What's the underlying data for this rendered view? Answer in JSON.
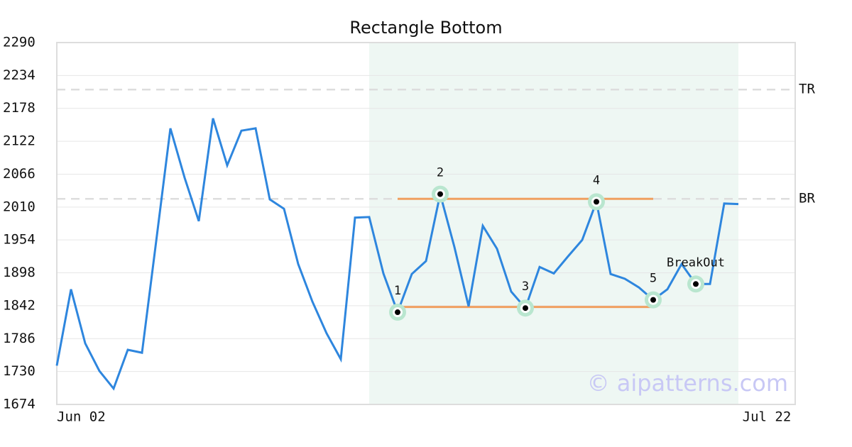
{
  "chart_data": {
    "type": "line",
    "title": "Rectangle Bottom",
    "x": [
      0,
      1,
      2,
      3,
      4,
      5,
      6,
      7,
      8,
      9,
      10,
      11,
      12,
      13,
      14,
      15,
      16,
      17,
      18,
      19,
      20,
      21,
      22,
      23,
      24,
      25,
      26,
      27,
      28,
      29,
      30,
      31,
      32,
      33,
      34,
      35,
      36,
      37,
      38,
      39,
      40,
      41,
      42,
      43,
      44,
      45,
      46,
      47,
      48
    ],
    "values": [
      1740,
      1870,
      1778,
      1731,
      1701,
      1767,
      1762,
      1952,
      2144,
      2060,
      1986,
      2161,
      2081,
      2140,
      2144,
      2023,
      2007,
      1913,
      1849,
      1795,
      1751,
      1992,
      1993,
      1897,
      1831,
      1896,
      1918,
      2032,
      1942,
      1841,
      1978,
      1939,
      1866,
      1838,
      1908,
      1897,
      1926,
      1954,
      2019,
      1896,
      1888,
      1873,
      1852,
      1870,
      1913,
      1879,
      1879,
      2016,
      2015
    ],
    "color": "#2e86de",
    "xlim": [
      0,
      52
    ],
    "xticks": [
      {
        "value": 0,
        "label": "Jun 02"
      },
      {
        "value": 50,
        "label": "Jul 22"
      }
    ],
    "ylim": [
      1674,
      2290
    ],
    "yticks": [
      1674,
      1730,
      1786,
      1842,
      1898,
      1954,
      2010,
      2066,
      2122,
      2178,
      2234,
      2290
    ],
    "grid": true,
    "region": {
      "x": [
        22,
        48
      ],
      "color": "#eef7f3"
    },
    "hlines": [
      {
        "label": "TR",
        "value": 2210
      },
      {
        "label": "BR",
        "value": 2024
      }
    ],
    "trend_lines": [
      {
        "x": [
          24,
          42
        ],
        "y": 2024,
        "color": "#f0a060"
      },
      {
        "x": [
          24,
          42
        ],
        "y": 1840,
        "color": "#f0a060"
      }
    ],
    "points": [
      {
        "label": "1",
        "x": 24,
        "y": 1831
      },
      {
        "label": "2",
        "x": 27,
        "y": 2032
      },
      {
        "label": "3",
        "x": 33,
        "y": 1838
      },
      {
        "label": "4",
        "x": 38,
        "y": 2019
      },
      {
        "label": "5",
        "x": 42,
        "y": 1852
      },
      {
        "label": "BreakOut",
        "x": 45,
        "y": 1879
      }
    ],
    "watermark": "© aipatterns.com"
  }
}
